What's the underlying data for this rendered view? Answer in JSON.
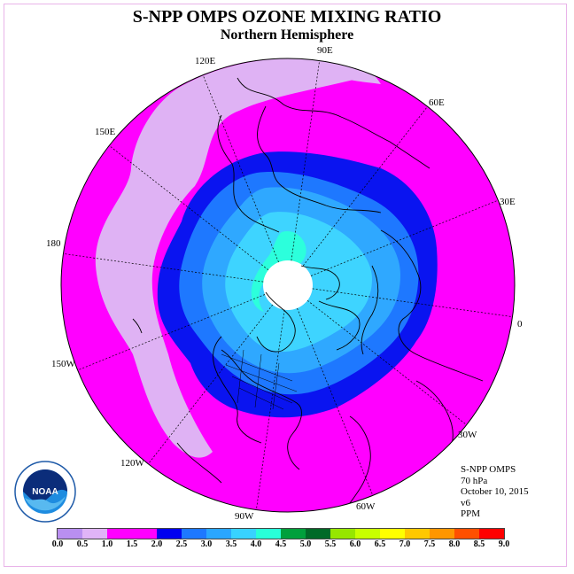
{
  "title": "S-NPP OMPS OZONE MIXING RATIO",
  "subtitle": "Northern Hemisphere",
  "longitude_labels": [
    "90E",
    "60E",
    "30E",
    "0",
    "30W",
    "60W",
    "90W",
    "120W",
    "150W",
    "180",
    "150E",
    "120E"
  ],
  "info": {
    "instrument": "S-NPP OMPS",
    "level": "70 hPa",
    "date": "October 10, 2015",
    "version": "v6",
    "units": "PPM"
  },
  "logo": {
    "text": "NOAA",
    "icon": "noaa-logo"
  },
  "colorbar": {
    "ticks": [
      "0.0",
      "0.5",
      "1.0",
      "1.5",
      "2.0",
      "2.5",
      "3.0",
      "3.5",
      "4.0",
      "4.5",
      "5.0",
      "5.5",
      "6.0",
      "6.5",
      "7.0",
      "7.5",
      "8.0",
      "8.5",
      "9.0"
    ],
    "colors": [
      "#b98ff0",
      "#e0b4f7",
      "#ff00ff",
      "#ff00ff",
      "#0000f0",
      "#1e78ff",
      "#2aa6ff",
      "#38d2ff",
      "#28ffd8",
      "#00a03c",
      "#006a28",
      "#96e600",
      "#c8ff00",
      "#ffff00",
      "#ffc800",
      "#ff9600",
      "#ff5000",
      "#ff0000",
      "#8b5a3c"
    ]
  },
  "colors": {
    "lavender": "#dfb2f4",
    "magenta": "#ff00ff",
    "blue": "#0a14f0",
    "mid_blue": "#1e78ff",
    "light_blue": "#2fa8ff",
    "cyan": "#3ed4ff",
    "aqua": "#2cffdc"
  }
}
